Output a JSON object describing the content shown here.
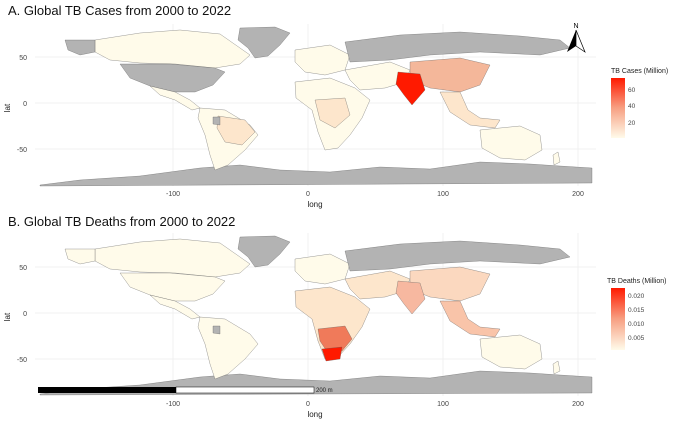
{
  "panels": [
    {
      "title": "A. Global TB Cases from 2000 to 2022",
      "xlabel": "long",
      "ylabel": "lat",
      "x_ticks": [
        "-100",
        "0",
        "100",
        "200"
      ],
      "y_ticks": [
        "50",
        "0",
        "-50"
      ],
      "legend_title": "TB Cases (Million)",
      "legend_ticks": [
        "60",
        "40",
        "20"
      ],
      "legend_colors": [
        "#ff0000",
        "#fde0c5",
        "#fffbea"
      ],
      "north_label": "N"
    },
    {
      "title": "B. Global TB Deaths from 2000 to 2022",
      "xlabel": "long",
      "ylabel": "lat",
      "x_ticks": [
        "-100",
        "0",
        "100",
        "200"
      ],
      "y_ticks": [
        "50",
        "0",
        "-50"
      ],
      "legend_title": "TB Deaths (Million)",
      "legend_ticks": [
        "0.020",
        "0.015",
        "0.010",
        "0.005"
      ],
      "legend_colors": [
        "#ff0000",
        "#fde0c5",
        "#fffbea"
      ],
      "scale_label": "200 m"
    }
  ],
  "colors": {
    "no_data": "#b3b3b3",
    "grid": "#e6e6e6",
    "low": "#fffbe6",
    "high": "#ff1a00"
  }
}
